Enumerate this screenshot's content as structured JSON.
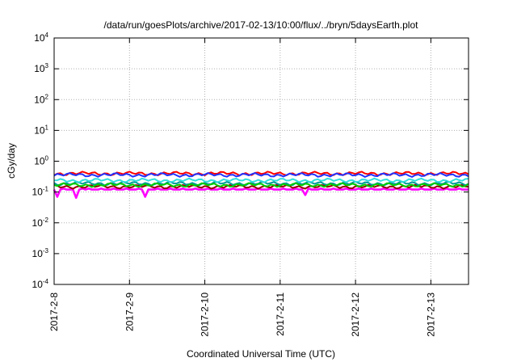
{
  "chart_data": {
    "type": "line",
    "title": "/data/run/goesPlots/archive/2017-02-13/10:00/flux/../bryn/5daysEarth.plot",
    "xlabel": "Coordinated Universal Time (UTC)",
    "ylabel": "cGy/day",
    "y_scale": "log",
    "ylim": [
      0.0001,
      10000
    ],
    "y_ticks": [
      {
        "value": 0.0001,
        "base": "10",
        "exp": "-4"
      },
      {
        "value": 0.001,
        "base": "10",
        "exp": "-3"
      },
      {
        "value": 0.01,
        "base": "10",
        "exp": "-2"
      },
      {
        "value": 0.1,
        "base": "10",
        "exp": "-1"
      },
      {
        "value": 1,
        "base": "10",
        "exp": "0"
      },
      {
        "value": 10,
        "base": "10",
        "exp": "1"
      },
      {
        "value": 100,
        "base": "10",
        "exp": "2"
      },
      {
        "value": 1000,
        "base": "10",
        "exp": "3"
      },
      {
        "value": 10000,
        "base": "10",
        "exp": "4"
      }
    ],
    "xlim": [
      "2017-02-08T00:00",
      "2017-02-13T12:00"
    ],
    "x_ticks": [
      "2017-2-8",
      "2017-2-9",
      "2017-2-10",
      "2017-2-11",
      "2017-2-12",
      "2017-2-13"
    ],
    "grid": true,
    "sample_hours": 1,
    "series": [
      {
        "color": "#ff00ff",
        "base": 0.12,
        "values": [
          0.12,
          0.07,
          0.12,
          0.13,
          0.12,
          0.12,
          0.12,
          0.065,
          0.12,
          0.13,
          0.12,
          0.13,
          0.12,
          0.12,
          0.12,
          0.13,
          0.12,
          0.12,
          0.12,
          0.13,
          0.12,
          0.12,
          0.12,
          0.13,
          0.12,
          0.12,
          0.12,
          0.13,
          0.12,
          0.07,
          0.12,
          0.12,
          0.12,
          0.13,
          0.12,
          0.12,
          0.12,
          0.13,
          0.12,
          0.12,
          0.12,
          0.13,
          0.12,
          0.12,
          0.12,
          0.13,
          0.12,
          0.12,
          0.12,
          0.13,
          0.12,
          0.12,
          0.12,
          0.13,
          0.12,
          0.12,
          0.12,
          0.13,
          0.12,
          0.12,
          0.12,
          0.13,
          0.12,
          0.12,
          0.12,
          0.13,
          0.12,
          0.12,
          0.12,
          0.13,
          0.12,
          0.12,
          0.12,
          0.13,
          0.12,
          0.12,
          0.12,
          0.13,
          0.12,
          0.12,
          0.08,
          0.13,
          0.12,
          0.12,
          0.12,
          0.13,
          0.12,
          0.12,
          0.12,
          0.13,
          0.12,
          0.12,
          0.12,
          0.13,
          0.12,
          0.12,
          0.12,
          0.13,
          0.12,
          0.12,
          0.12,
          0.13,
          0.12,
          0.12,
          0.12,
          0.13,
          0.12,
          0.12,
          0.12,
          0.13,
          0.12,
          0.12,
          0.12,
          0.13,
          0.12,
          0.12,
          0.12,
          0.13,
          0.12,
          0.12,
          0.12,
          0.13,
          0.12,
          0.12,
          0.12,
          0.13,
          0.12,
          0.12,
          0.12,
          0.13,
          0.12,
          0.12
        ]
      },
      {
        "color": "#990000",
        "base": 0.15,
        "values": []
      },
      {
        "color": "#009999",
        "base": 0.19,
        "values": []
      },
      {
        "color": "#00cc00",
        "base": 0.17,
        "values": []
      },
      {
        "color": "#33dddd",
        "base": 0.24,
        "values": []
      },
      {
        "color": "#ff0000",
        "base": 0.4,
        "values": []
      },
      {
        "color": "#2233ff",
        "base": 0.36,
        "values": []
      }
    ]
  }
}
